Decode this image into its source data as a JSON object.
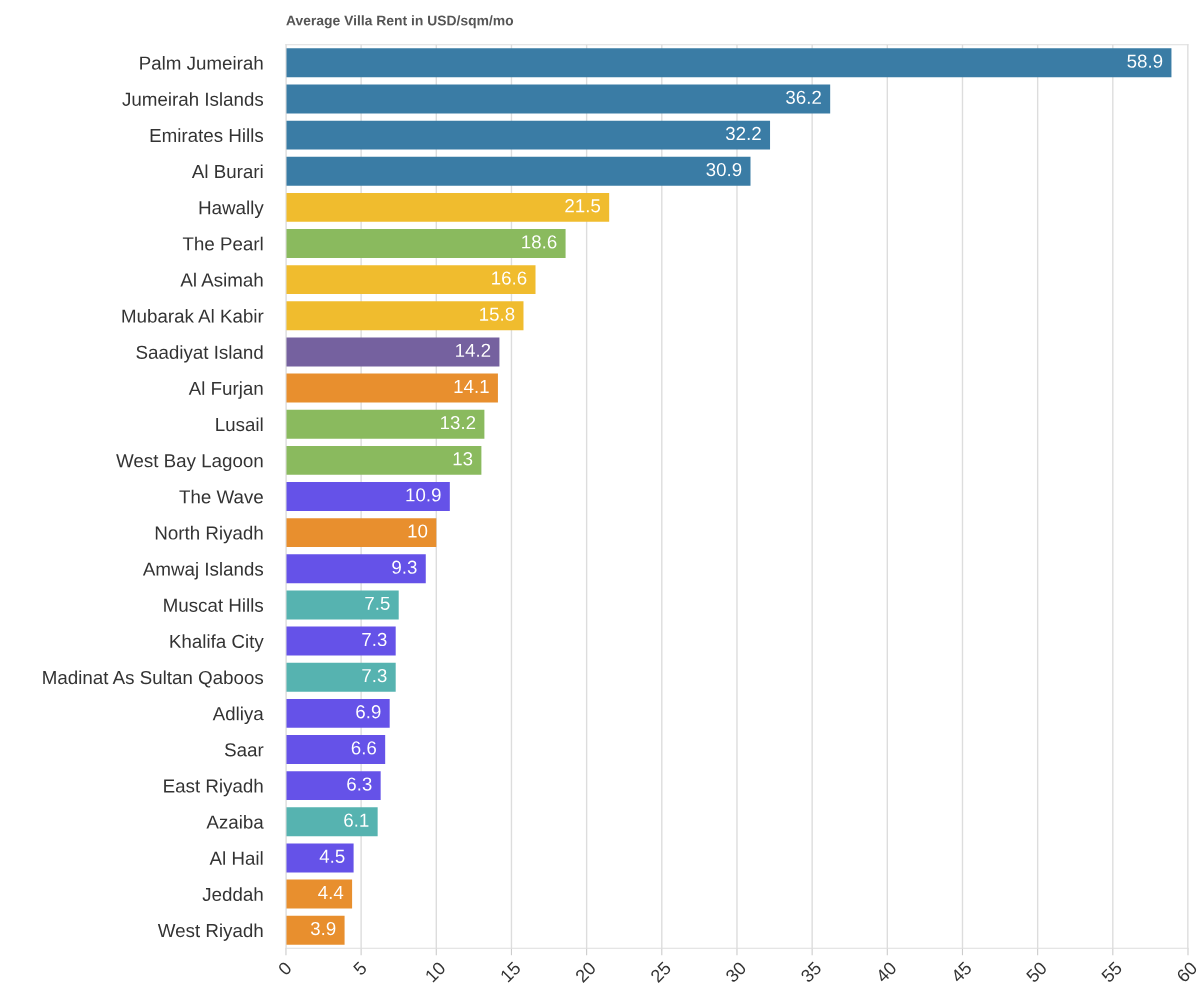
{
  "chart_data": {
    "type": "bar",
    "orientation": "horizontal",
    "title": "Average Villa Rent in USD/sqm/mo",
    "categories": [
      "Palm Jumeirah",
      "Jumeirah Islands",
      "Emirates Hills",
      "Al Burari",
      "Hawally",
      "The Pearl",
      "Al Asimah",
      "Mubarak Al Kabir",
      "Saadiyat Island",
      "Al Furjan",
      "Lusail",
      "West Bay Lagoon",
      "The Wave",
      "North Riyadh",
      "Amwaj Islands",
      "Muscat Hills",
      "Khalifa City",
      "Madinat As Sultan Qaboos",
      "Adliya",
      "Saar",
      "East Riyadh",
      "Azaiba",
      "Al Hail",
      "Jeddah",
      "West Riyadh"
    ],
    "values": [
      58.9,
      36.2,
      32.2,
      30.9,
      21.5,
      18.6,
      16.6,
      15.8,
      14.2,
      14.1,
      13.2,
      13,
      10.9,
      10,
      9.3,
      7.5,
      7.3,
      7.3,
      6.9,
      6.6,
      6.3,
      6.1,
      4.5,
      4.4,
      3.9
    ],
    "colors": [
      "#3a7ca5",
      "#3a7ca5",
      "#3a7ca5",
      "#3a7ca5",
      "#f0bc2e",
      "#8aba5e",
      "#f0bc2e",
      "#f0bc2e",
      "#75619f",
      "#e88f2e",
      "#8aba5e",
      "#8aba5e",
      "#6552e8",
      "#e88f2e",
      "#6552e8",
      "#56b3b0",
      "#6552e8",
      "#56b3b0",
      "#6552e8",
      "#6552e8",
      "#6552e8",
      "#56b3b0",
      "#6552e8",
      "#e88f2e",
      "#e88f2e"
    ],
    "xlim": [
      0,
      60
    ],
    "xticks": [
      0,
      5,
      10,
      15,
      20,
      25,
      30,
      35,
      40,
      45,
      50,
      55,
      60
    ],
    "grid": "x",
    "data_labels": true
  }
}
